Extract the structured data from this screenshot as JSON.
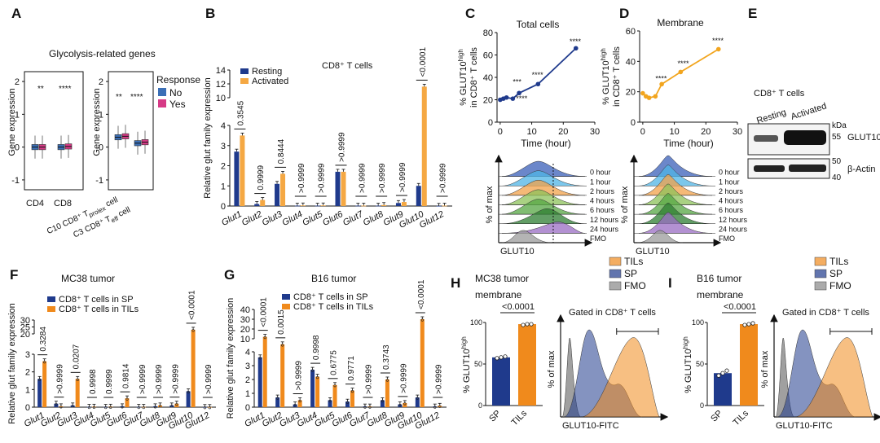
{
  "colors": {
    "resting": "#1f3a8c",
    "activated": "#f5a843",
    "sp": "#1f3a8c",
    "tils": "#f08a1c",
    "no": "#3b6fb6",
    "yes": "#d63a86",
    "lineC": "#1f3a8c",
    "lineD": "#f2a51e",
    "fmo": "#888888"
  },
  "panel_labels": {
    "A": "A",
    "B": "B",
    "C": "C",
    "D": "D",
    "E": "E",
    "F": "F",
    "G": "G",
    "H": "H",
    "I": "I"
  },
  "text": {
    "superH": "high",
    "t_super": "+",
    "t_prolex": "prolex",
    "t_eff": "eff",
    "pctmax": "% of max",
    "glut10": "GLUT10",
    "glut10fitc": "GLUT10-FITC",
    "gated": "Gated in CD8⁺ T cells",
    "membrane": "membrane",
    "cd8": "CD8⁺ T cells",
    "kda": "kDa",
    "resting": "Resting",
    "activated": "Activated",
    "wb_glut10": "GLUT10",
    "wb_actin": "β-Actin",
    "B_yaxis": "Relative glut family expression",
    "C_ylabel1": "% GLUT10",
    "C_ylabel2": "in CD8⁺ T cells",
    "H_ylabel": "% GLUT10"
  },
  "chart_data": [
    {
      "id": "A",
      "type": "box",
      "title": "Glycolysis-related genes",
      "ylabel": "Gene expression",
      "yticks": [
        "-1",
        "0",
        "1",
        "2"
      ],
      "ylim": [
        -1.3,
        2.3
      ],
      "legend": {
        "title": "Response",
        "items": [
          "No",
          "Yes"
        ]
      },
      "groups_left": [
        "CD4",
        "CD8"
      ],
      "groups_right": [
        "C10 CD8⁺ T",
        "C3 CD8⁺ T"
      ],
      "right_suffix": [
        " cell",
        " cell"
      ],
      "sig_left": [
        "**",
        "****"
      ],
      "sig_right": [
        "**",
        "****"
      ],
      "medians": {
        "left": [
          [
            0.0,
            0.0
          ],
          [
            0.0,
            0.02
          ]
        ],
        "right": [
          [
            0.3,
            0.33
          ],
          [
            0.12,
            0.15
          ]
        ]
      }
    },
    {
      "id": "B",
      "type": "bar",
      "title": "CD8⁺ T cells",
      "series": [
        {
          "name": "Resting",
          "values": [
            2.7,
            0.1,
            1.1,
            0.02,
            0.02,
            1.7,
            0.02,
            0.02,
            0.15,
            1.0,
            0.01
          ]
        },
        {
          "name": "Activated",
          "values": [
            3.5,
            0.3,
            1.6,
            0.03,
            0.03,
            1.7,
            0.02,
            0.05,
            0.2,
            11.6,
            0.02
          ]
        }
      ],
      "categories": [
        "Glut1",
        "Glut2",
        "Glut3",
        "Glut4",
        "Glut5",
        "Glut6",
        "Glut7",
        "Glut8",
        "Glut9",
        "Glut10",
        "Glut12"
      ],
      "pvalues": [
        "0.3545",
        "0.9999",
        "0.8444",
        ">0.9999",
        ">0.9999",
        ">0.9999",
        ">0.9999",
        ">0.9999",
        ">0.9999",
        "<0.0001",
        ">0.9999"
      ],
      "yticks_low": [
        "0",
        "1",
        "2",
        "3",
        "4"
      ],
      "yticks_high": [
        "10",
        "12",
        "14"
      ],
      "ylim": [
        0,
        14
      ]
    },
    {
      "id": "C",
      "type": "line",
      "title": "Total cells",
      "xlabel": "Time (hour)",
      "x": [
        0,
        1,
        2,
        4,
        6,
        12,
        24
      ],
      "y": [
        20,
        21,
        22,
        21,
        26,
        34,
        66
      ],
      "xticks": [
        "0",
        "10",
        "20",
        "30"
      ],
      "yticks": [
        "0",
        "20",
        "40",
        "60",
        "80"
      ],
      "xlim": [
        -1,
        30
      ],
      "ylim": [
        0,
        80
      ],
      "sig": [
        "***",
        "****",
        "****",
        "****"
      ],
      "histogram_labels": [
        "0 hour",
        "1 hour",
        "2 hours",
        "4 hours",
        "6 hours",
        "12 hours",
        "24 hours",
        "FMO"
      ]
    },
    {
      "id": "D",
      "type": "line",
      "title": "Membrane",
      "xlabel": "Time (hour)",
      "x": [
        0,
        1,
        2,
        4,
        6,
        12,
        24
      ],
      "y": [
        19,
        17,
        16,
        17,
        25,
        33,
        48
      ],
      "xticks": [
        "0",
        "10",
        "20",
        "30"
      ],
      "yticks": [
        "0",
        "20",
        "40",
        "60"
      ],
      "xlim": [
        -1,
        30
      ],
      "ylim": [
        0,
        60
      ],
      "sig": [
        "****",
        "****",
        "****"
      ],
      "histogram_labels": [
        "0 hour",
        "1 hour",
        "2 hours",
        "4 hours",
        "6 hours",
        "12 hours",
        "24 hours",
        "FMO"
      ]
    },
    {
      "id": "E",
      "type": "western_blot",
      "title": "CD8⁺ T cells",
      "lanes": [
        "Resting",
        "Activated"
      ],
      "bands": [
        "GLUT10",
        "β-Actin"
      ],
      "markers": [
        "55",
        "50",
        "40"
      ]
    },
    {
      "id": "F",
      "type": "bar",
      "title": "MC38 tumor",
      "series": [
        {
          "name": "CD8⁺ T cells in SP",
          "values": [
            1.6,
            0.2,
            0.1,
            0.02,
            0.02,
            0.05,
            0.02,
            0.05,
            0.1,
            0.9,
            0.01
          ]
        },
        {
          "name": "CD8⁺ T cells in TILs",
          "values": [
            2.6,
            0.05,
            1.6,
            0.03,
            0.03,
            0.5,
            0.02,
            0.1,
            0.2,
            23,
            0.01
          ]
        }
      ],
      "categories": [
        "Glut1",
        "Glut2",
        "Glut3",
        "Glut4",
        "Glut5",
        "Glut6",
        "Glut7",
        "Glut8",
        "Glut9",
        "Glut10",
        "Glut12"
      ],
      "pvalues": [
        "0.3284",
        ">0.9999",
        "0.0207",
        "0.9998",
        "0.9999",
        "0.9814",
        ">0.9999",
        ">0.9999",
        ">0.9999",
        "<0.0001",
        ">0.9999"
      ],
      "yticks_low": [
        "0",
        "1",
        "2",
        "3"
      ],
      "yticks_high": [
        "20",
        "25",
        "30"
      ],
      "ylim": [
        0,
        30
      ]
    },
    {
      "id": "G",
      "type": "bar",
      "title": "B16 tumor",
      "series": [
        {
          "name": "CD8⁺ T cells in SP",
          "values": [
            3.6,
            0.7,
            0.2,
            2.7,
            0.5,
            0.4,
            0.05,
            0.5,
            0.2,
            0.7,
            0.05
          ]
        },
        {
          "name": "CD8⁺ T cells in TILs",
          "values": [
            12,
            4.3,
            0.5,
            2.2,
            1.6,
            1.2,
            0.05,
            2.0,
            0.3,
            30,
            0.1
          ]
        }
      ],
      "categories": [
        "Glut1",
        "Glut2",
        "Glut3",
        "Glut4",
        "Glut5",
        "Glut6",
        "Glut7",
        "Glut8",
        "Glut9",
        "Glut10",
        "Glut12"
      ],
      "pvalues": [
        "<0.0001",
        "0.0015",
        ">0.9999",
        "0.9998",
        "0.6775",
        "0.9771",
        ">0.9999",
        "0.3743",
        ">0.9999",
        "<0.0001",
        ">0.9999"
      ],
      "yticks_low": [
        "0",
        "1",
        "2",
        "3",
        "4"
      ],
      "yticks_high": [
        "10",
        "20",
        "30",
        "40"
      ],
      "ylim": [
        0,
        40
      ]
    },
    {
      "id": "H",
      "type": "bar",
      "title": "MC38 tumor",
      "subtitle": "membrane",
      "categories": [
        "SP",
        "TILs"
      ],
      "values": [
        58,
        98
      ],
      "points": [
        [
          57,
          58,
          59
        ],
        [
          97,
          98,
          98
        ]
      ],
      "pvalue": "<0.0001",
      "yticks": [
        "0",
        "50",
        "100"
      ],
      "ylim": [
        0,
        100
      ],
      "legend": [
        "TILs",
        "SP",
        "FMO"
      ]
    },
    {
      "id": "I",
      "type": "bar",
      "title": "B16 tumor",
      "subtitle": "membrane",
      "categories": [
        "SP",
        "TILs"
      ],
      "values": [
        39,
        98
      ],
      "points": [
        [
          36,
          39,
          42
        ],
        [
          97,
          98,
          99
        ]
      ],
      "pvalue": "<0.0001",
      "yticks": [
        "0",
        "50",
        "100"
      ],
      "ylim": [
        0,
        100
      ],
      "legend": [
        "TILs",
        "SP",
        "FMO"
      ]
    }
  ]
}
